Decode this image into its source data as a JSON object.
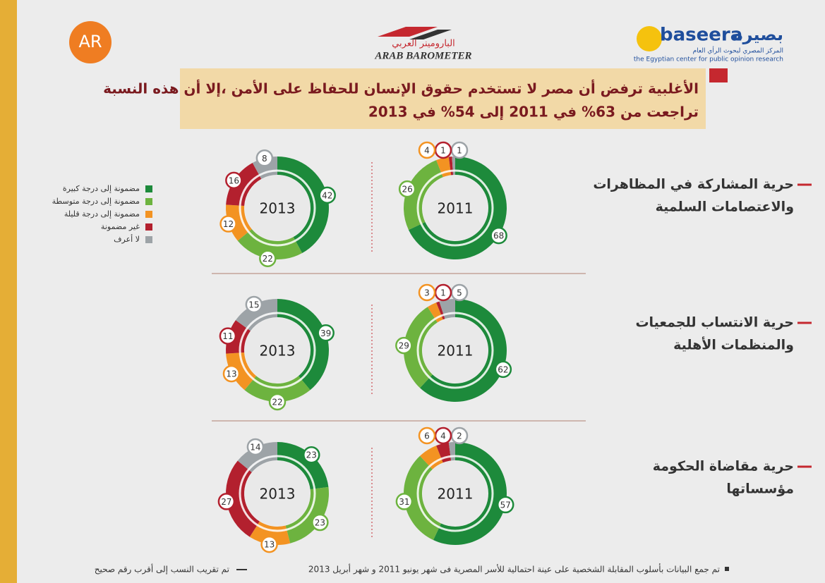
{
  "header": {
    "line1": "الأغلبية ترفض أن مصر لا تستخدم حقوق الإنسان للحفاظ على الأمن ،إلا أن هذه النسبة",
    "line2": "تراجعت من 63% في 2011 إلى 54% في 2013"
  },
  "logos": {
    "ar": "AR",
    "barometer_ar": "البارومينر العربي",
    "barometer_en": "ARAB BAROMETER",
    "baseera_en": "baseera",
    "baseera_ar": "بصيرة",
    "baseera_sub_ar": "المركز المصري لبحوث الرأي العام",
    "baseera_sub_en": "the Egyptian center for public opinion research"
  },
  "legend": {
    "labels": [
      "مضمونة إلى درجة كبيرة",
      "مضمونة إلى درجة متوسطة",
      "مضمونة إلى درجة قليلة",
      "غير مضمونة",
      "لا أعرف"
    ],
    "colors": [
      "#1d8a3b",
      "#6db33f",
      "#f39322",
      "#b3202e",
      "#9da3a7"
    ]
  },
  "rows": [
    {
      "line1": "حرية المشاركة في المظاهرات",
      "line2": "والاعتصامات السلمية"
    },
    {
      "line1": "حرية الانتساب للجمعيات",
      "line2": "والمنظمات الأهلية"
    },
    {
      "line1": "حرية مقاضاة الحكومة",
      "line2": "مؤسساتها"
    }
  ],
  "chart_data": [
    {
      "type": "donut",
      "title": "2013",
      "values": [
        42,
        22,
        12,
        16,
        8
      ]
    },
    {
      "type": "donut",
      "title": "2011",
      "values": [
        68,
        26,
        4,
        1,
        1
      ]
    },
    {
      "type": "donut",
      "title": "2013",
      "values": [
        39,
        22,
        13,
        11,
        15
      ]
    },
    {
      "type": "donut",
      "title": "2011",
      "values": [
        62,
        29,
        3,
        1,
        5
      ]
    },
    {
      "type": "donut",
      "title": "2013",
      "values": [
        23,
        23,
        13,
        27,
        14
      ]
    },
    {
      "type": "donut",
      "title": "2011",
      "values": [
        57,
        31,
        6,
        4,
        2
      ]
    }
  ],
  "footnote": {
    "left": "تم جمع البيانات بأسلوب المقابلة الشخصية على عينة احتمالية للأسر المصرية فى شهر يونيو 2011 و شهر أبريل 2013",
    "right": "تم تقريب النسب إلى أقرب رقم صحيح"
  }
}
